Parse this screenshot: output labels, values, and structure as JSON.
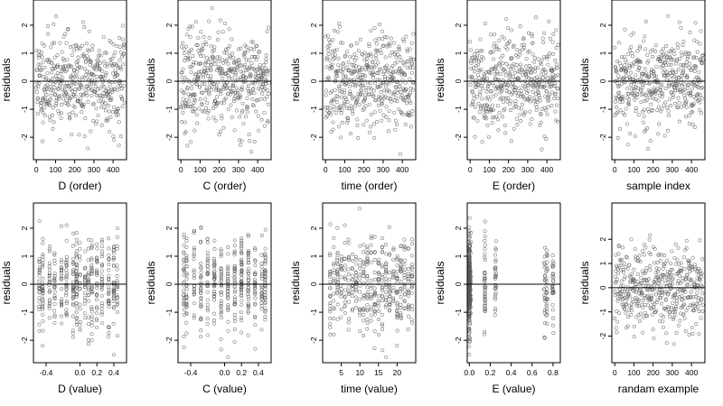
{
  "chart_data": [
    {
      "type": "scatter",
      "xlabel": "D (order)",
      "ylabel": "residuals",
      "xlim": [
        -15,
        470
      ],
      "ylim": [
        -2.8,
        2.9
      ],
      "xticks": [
        0,
        100,
        200,
        300,
        400
      ],
      "xtick_labels": [
        "0",
        "100",
        "200",
        "300",
        "400"
      ],
      "yticks": [
        -2,
        -1,
        0,
        1,
        2
      ],
      "ytick_labels": [
        "-2",
        "-1",
        "0",
        "1",
        "2"
      ],
      "hline": 0,
      "grid": false,
      "n_points": 460,
      "x_kind": "index",
      "seed": 11
    },
    {
      "type": "scatter",
      "xlabel": "C (order)",
      "ylabel": "residuals",
      "xlim": [
        -15,
        470
      ],
      "ylim": [
        -2.8,
        2.9
      ],
      "xticks": [
        0,
        100,
        200,
        300,
        400
      ],
      "xtick_labels": [
        "0",
        "100",
        "200",
        "300",
        "400"
      ],
      "yticks": [
        -2,
        -1,
        0,
        1,
        2
      ],
      "ytick_labels": [
        "-2",
        "-1",
        "0",
        "1",
        "2"
      ],
      "hline": 0,
      "grid": false,
      "n_points": 460,
      "x_kind": "index",
      "seed": 23
    },
    {
      "type": "scatter",
      "xlabel": "time (order)",
      "ylabel": "residuals",
      "xlim": [
        -15,
        470
      ],
      "ylim": [
        -2.8,
        2.9
      ],
      "xticks": [
        0,
        100,
        200,
        300,
        400
      ],
      "xtick_labels": [
        "0",
        "100",
        "200",
        "300",
        "400"
      ],
      "yticks": [
        -2,
        -1,
        0,
        1,
        2
      ],
      "ytick_labels": [
        "-2",
        "-1",
        "0",
        "1",
        "2"
      ],
      "hline": 0,
      "grid": false,
      "n_points": 460,
      "x_kind": "index",
      "seed": 37
    },
    {
      "type": "scatter",
      "xlabel": "E (order)",
      "ylabel": "residuals",
      "xlim": [
        -15,
        470
      ],
      "ylim": [
        -2.8,
        2.9
      ],
      "xticks": [
        0,
        100,
        200,
        300,
        400
      ],
      "xtick_labels": [
        "0",
        "100",
        "200",
        "300",
        "400"
      ],
      "yticks": [
        -2,
        -1,
        0,
        1,
        2
      ],
      "ytick_labels": [
        "-2",
        "-1",
        "0",
        "1",
        "2"
      ],
      "hline": 0,
      "grid": false,
      "n_points": 460,
      "x_kind": "index",
      "seed": 41
    },
    {
      "type": "scatter",
      "xlabel": "sample index",
      "ylabel": "residuals",
      "xlim": [
        -15,
        470
      ],
      "ylim": [
        -2.8,
        2.9
      ],
      "xticks": [
        0,
        100,
        200,
        300,
        400
      ],
      "xtick_labels": [
        "0",
        "100",
        "200",
        "300",
        "400"
      ],
      "yticks": [
        -2,
        -1,
        0,
        1,
        2
      ],
      "ytick_labels": [
        "-2",
        "-1",
        "0",
        "1",
        "2"
      ],
      "hline": 0,
      "grid": false,
      "n_points": 460,
      "x_kind": "index",
      "seed": 53
    },
    {
      "type": "scatter",
      "xlabel": "D (value)",
      "ylabel": "residuals",
      "xlim": [
        -0.55,
        0.55
      ],
      "ylim": [
        -2.8,
        2.9
      ],
      "xticks": [
        -0.4,
        0.0,
        0.2,
        0.4
      ],
      "xtick_labels": [
        "-0.4",
        "0.0",
        "0.2",
        "0.4"
      ],
      "yticks": [
        -2,
        -1,
        0,
        1,
        2
      ],
      "ytick_labels": [
        "-2",
        "-1",
        "0",
        "1",
        "2"
      ],
      "hline": 0,
      "grid": false,
      "n_points": 440,
      "x_kind": "discrete",
      "x_levels": [
        -0.48,
        -0.44,
        -0.36,
        -0.3,
        -0.22,
        -0.16,
        -0.08,
        -0.04,
        0.0,
        0.06,
        0.1,
        0.14,
        0.2,
        0.26,
        0.34,
        0.4,
        0.44
      ],
      "seed": 61
    },
    {
      "type": "scatter",
      "xlabel": "C (value)",
      "ylabel": "residuals",
      "xlim": [
        -0.55,
        0.55
      ],
      "ylim": [
        -2.8,
        2.9
      ],
      "xticks": [
        -0.4,
        0.0,
        0.2,
        0.4
      ],
      "xtick_labels": [
        "-0.4",
        "0.0",
        "0.2",
        "0.4"
      ],
      "yticks": [
        -2,
        -1,
        0,
        1,
        2
      ],
      "ytick_labels": [
        "-2",
        "-1",
        "0",
        "1",
        "2"
      ],
      "hline": 0,
      "grid": false,
      "n_points": 440,
      "x_kind": "discrete",
      "x_levels": [
        -0.48,
        -0.45,
        -0.36,
        -0.28,
        -0.2,
        -0.12,
        -0.04,
        0.04,
        0.12,
        0.2,
        0.28,
        0.36,
        0.44,
        0.48
      ],
      "seed": 71
    },
    {
      "type": "scatter",
      "xlabel": "time (value)",
      "ylabel": "residuals",
      "xlim": [
        0,
        25
      ],
      "ylim": [
        -2.8,
        2.9
      ],
      "xticks": [
        5,
        10,
        15,
        20
      ],
      "xtick_labels": [
        "5",
        "10",
        "15",
        "20"
      ],
      "yticks": [
        -2,
        -1,
        0,
        1,
        2
      ],
      "ytick_labels": [
        "-2",
        "-1",
        "0",
        "1",
        "2"
      ],
      "hline": 0,
      "grid": false,
      "n_points": 440,
      "x_kind": "discrete",
      "x_levels": [
        2,
        3,
        4,
        5,
        6,
        7,
        8,
        9,
        10,
        11,
        12,
        13,
        14,
        15,
        16,
        17,
        18,
        19,
        20,
        21,
        22,
        23,
        24
      ],
      "seed": 83
    },
    {
      "type": "scatter",
      "xlabel": "E (value)",
      "ylabel": "residuals",
      "xlim": [
        -0.02,
        0.87
      ],
      "ylim": [
        -2.8,
        2.9
      ],
      "xticks": [
        0.0,
        0.2,
        0.4,
        0.6,
        0.8
      ],
      "xtick_labels": [
        "0.0",
        "0.2",
        "0.4",
        "0.6",
        "0.8"
      ],
      "yticks": [
        -2,
        -1,
        0,
        1,
        2
      ],
      "ytick_labels": [
        "-2",
        "-1",
        "0",
        "1",
        "2"
      ],
      "hline": 0,
      "grid": false,
      "n_points": 440,
      "x_kind": "clusters",
      "x_levels": [
        0.0,
        0.0,
        0.0,
        0.0,
        0.0,
        0.0,
        0.0,
        0.0,
        0.0,
        0.0,
        0.0,
        0.01,
        0.72,
        0.74,
        0.8,
        0.15,
        0.25
      ],
      "seed": 97
    },
    {
      "type": "scatter",
      "xlabel": "randam example",
      "ylabel": "residuals",
      "xlim": [
        -15,
        470
      ],
      "ylim": [
        -3.1,
        3.5
      ],
      "xticks": [
        0,
        100,
        200,
        300,
        400
      ],
      "xtick_labels": [
        "0",
        "100",
        "200",
        "300",
        "400"
      ],
      "yticks": [
        -2,
        -1,
        0,
        1,
        2
      ],
      "ytick_labels": [
        "-2",
        "-1",
        "0",
        "1",
        "2"
      ],
      "hline": 0,
      "grid": false,
      "n_points": 460,
      "x_kind": "index",
      "seed": 101
    }
  ]
}
